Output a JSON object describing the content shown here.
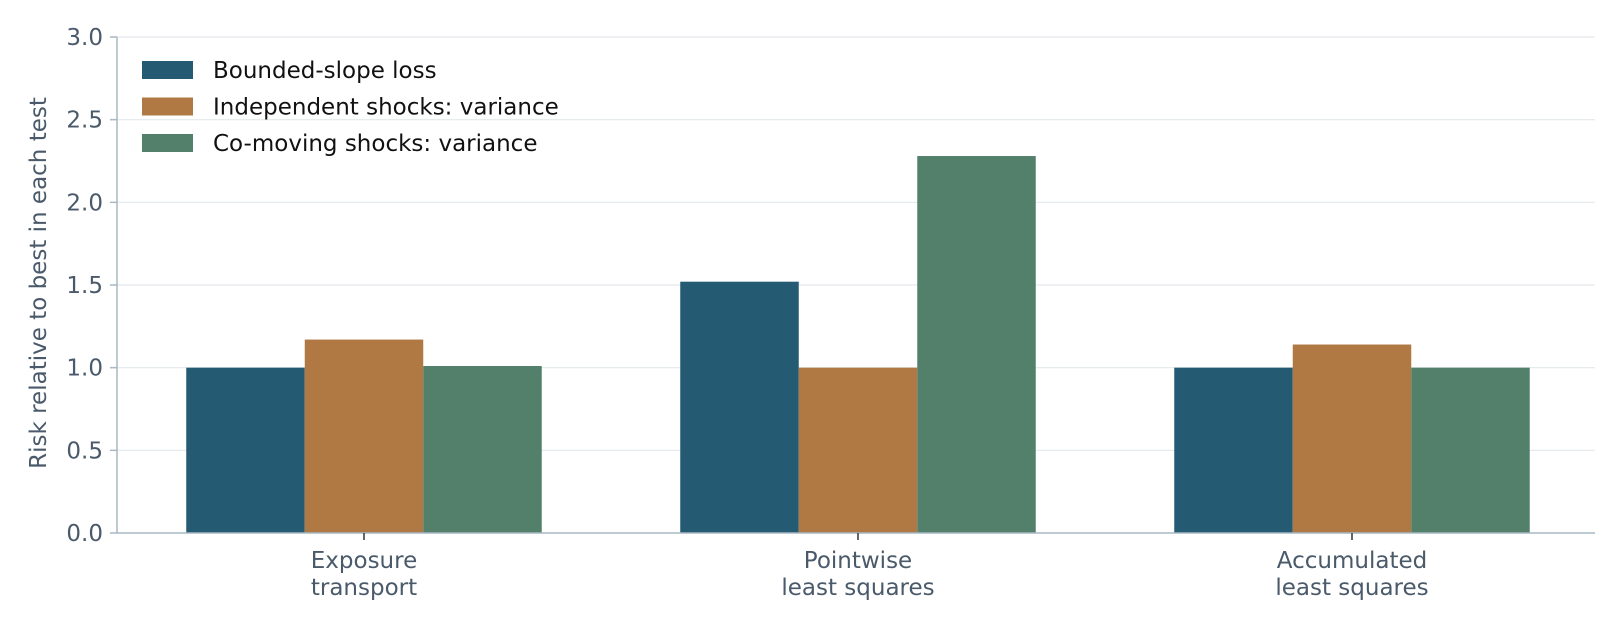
{
  "chart_data": {
    "type": "bar",
    "title": "",
    "xlabel": "",
    "ylabel": "Risk relative to best in each test",
    "categories": [
      [
        "Exposure",
        "transport"
      ],
      [
        "Pointwise",
        "least squares"
      ],
      [
        "Accumulated",
        "least squares"
      ]
    ],
    "series": [
      {
        "name": "Bounded-slope loss",
        "color": "#245b72",
        "values": [
          1.0,
          1.52,
          1.0
        ]
      },
      {
        "name": "Independent shocks: variance",
        "color": "#b07842",
        "values": [
          1.17,
          1.0,
          1.14
        ]
      },
      {
        "name": "Co-moving shocks: variance",
        "color": "#52806b",
        "values": [
          1.01,
          2.28,
          1.0
        ]
      }
    ],
    "ylim": [
      0,
      3.0
    ],
    "yticks": [
      "0.0",
      "0.5",
      "1.0",
      "1.5",
      "2.0",
      "2.5",
      "3.0"
    ],
    "grid": "horizontal",
    "legend_position": "top-left",
    "colors": {
      "axis": "#a8b8c4",
      "grid": "#e3e8ec",
      "tick_text": "#4a5a6a"
    }
  }
}
